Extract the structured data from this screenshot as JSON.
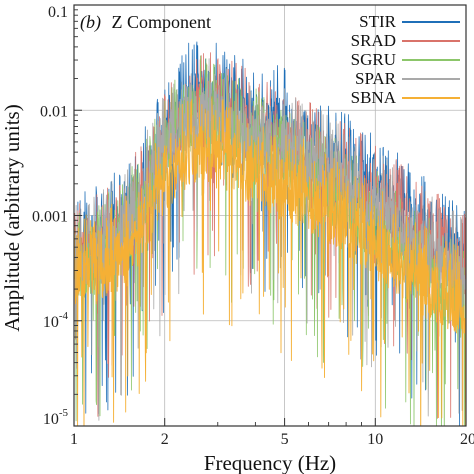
{
  "chart_data": {
    "type": "line",
    "panel_label": "(b)",
    "title": "Z Component",
    "xlabel": "Frequency (Hz)",
    "ylabel": "Amplitude (arbitrary units)",
    "xscale": "log",
    "yscale": "log",
    "xlim": [
      1,
      20
    ],
    "ylim": [
      1e-05,
      0.1
    ],
    "grid": true,
    "legend_position": "top-right",
    "x_ticks": [
      {
        "value": 1,
        "label": "1"
      },
      {
        "value": 2,
        "label": "2"
      },
      {
        "value": 5,
        "label": "5"
      },
      {
        "value": 10,
        "label": "10"
      },
      {
        "value": 20,
        "label": "20"
      }
    ],
    "y_ticks": [
      {
        "value": 1e-05,
        "base": "10",
        "exp": "-5"
      },
      {
        "value": 0.0001,
        "base": "10",
        "exp": "-4"
      },
      {
        "value": 0.001,
        "label": "0.001"
      },
      {
        "value": 0.01,
        "label": "0.01"
      },
      {
        "value": 0.1,
        "label": "0.1"
      }
    ],
    "series": [
      {
        "name": "STIR",
        "color": "#1f6fb8",
        "envelope": {
          "x": [
            1,
            1.2,
            1.5,
            1.8,
            2.1,
            2.4,
            2.7,
            3,
            3.5,
            4,
            5,
            6,
            7,
            8,
            10,
            12,
            15,
            18,
            20
          ],
          "y": [
            0.0006,
            0.0007,
            0.0012,
            0.0035,
            0.009,
            0.016,
            0.018,
            0.017,
            0.013,
            0.011,
            0.009,
            0.006,
            0.0045,
            0.0035,
            0.0022,
            0.0015,
            0.0008,
            0.0006,
            0.0005
          ]
        }
      },
      {
        "name": "SRAD",
        "color": "#d9736a",
        "envelope": {
          "x": [
            1,
            1.2,
            1.5,
            1.8,
            2.1,
            2.4,
            2.7,
            3,
            3.5,
            4,
            5,
            6,
            7,
            8,
            10,
            12,
            15,
            18,
            20
          ],
          "y": [
            0.0005,
            0.0006,
            0.001,
            0.003,
            0.007,
            0.012,
            0.013,
            0.012,
            0.01,
            0.008,
            0.006,
            0.0045,
            0.0035,
            0.0027,
            0.0018,
            0.0012,
            0.0007,
            0.0005,
            0.0004
          ]
        }
      },
      {
        "name": "SGRU",
        "color": "#8cc66a",
        "envelope": {
          "x": [
            1,
            1.2,
            1.5,
            1.8,
            2.1,
            2.4,
            2.7,
            3,
            3.5,
            4,
            5,
            6,
            7,
            8,
            10,
            12,
            15,
            18,
            20
          ],
          "y": [
            0.0004,
            0.0005,
            0.0009,
            0.0025,
            0.0065,
            0.011,
            0.012,
            0.011,
            0.008,
            0.006,
            0.0042,
            0.003,
            0.0022,
            0.0016,
            0.001,
            0.0006,
            0.00035,
            0.00022,
            0.00018
          ]
        }
      },
      {
        "name": "SPAR",
        "color": "#a9a9a9",
        "envelope": {
          "x": [
            1,
            1.2,
            1.5,
            1.8,
            2.1,
            2.4,
            2.7,
            3,
            3.5,
            4,
            5,
            6,
            7,
            8,
            10,
            12,
            15,
            18,
            20
          ],
          "y": [
            0.0005,
            0.0006,
            0.001,
            0.0028,
            0.007,
            0.011,
            0.012,
            0.011,
            0.009,
            0.0075,
            0.0058,
            0.0042,
            0.0032,
            0.0024,
            0.0015,
            0.001,
            0.0006,
            0.00042,
            0.00035
          ]
        }
      },
      {
        "name": "SBNA",
        "color": "#f5b035",
        "envelope": {
          "x": [
            1,
            1.2,
            1.5,
            1.8,
            2.1,
            2.4,
            2.7,
            3,
            3.5,
            4,
            5,
            6,
            7,
            8,
            10,
            12,
            15,
            18,
            20
          ],
          "y": [
            0.00035,
            0.0004,
            0.0006,
            0.0015,
            0.0035,
            0.005,
            0.0055,
            0.005,
            0.004,
            0.0032,
            0.0024,
            0.0018,
            0.0014,
            0.0011,
            0.0007,
            0.00045,
            0.00028,
            0.0002,
            0.00016
          ]
        }
      }
    ]
  }
}
